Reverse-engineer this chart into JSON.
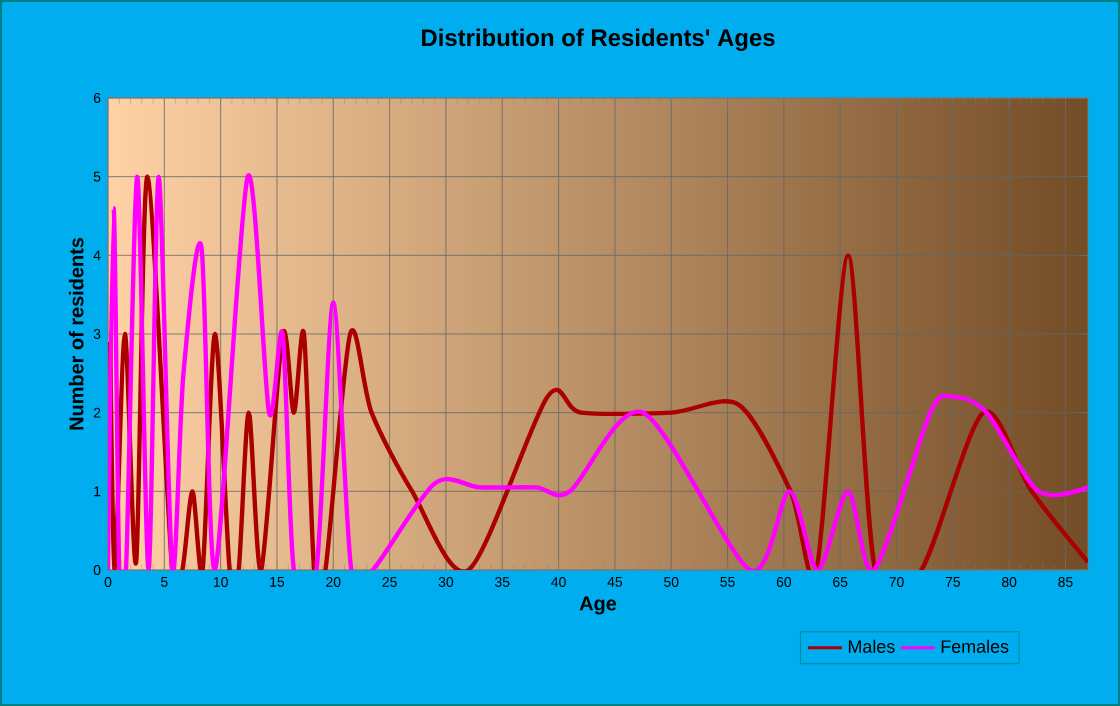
{
  "chart_data": {
    "type": "line",
    "title": "Distribution of Residents' Ages",
    "xlabel": "Age",
    "ylabel": "Number of residents",
    "xlim": [
      0,
      87
    ],
    "xticks": [
      0,
      5,
      10,
      15,
      20,
      25,
      30,
      35,
      40,
      45,
      50,
      55,
      60,
      65,
      70,
      75,
      80,
      85
    ],
    "ylim": [
      0,
      6
    ],
    "yticks": [
      0,
      1,
      2,
      3,
      4,
      5,
      6
    ],
    "grid": true,
    "legend": "bottom right",
    "marker": "none",
    "line_style": "solid",
    "series": [
      {
        "name": "Males",
        "color": "#aa0000",
        "x": [
          0.2,
          0.6,
          1.5,
          2.5,
          3.5,
          5.7,
          6.6,
          7.5,
          8.4,
          9.5,
          10.8,
          11.6,
          12.5,
          13.6,
          15.5,
          16.5,
          17.4,
          18.3,
          19.3,
          21.5,
          23.4,
          27,
          32,
          39,
          42,
          50,
          56,
          60.6,
          62.9,
          65.7,
          68.1,
          72.2,
          77.7,
          82,
          87
        ],
        "values": [
          2.9,
          0,
          3,
          0.1,
          5,
          0,
          0,
          1,
          0,
          3,
          0,
          0,
          2,
          0,
          3,
          2,
          3,
          0,
          0,
          3,
          2,
          1,
          0,
          2.2,
          2,
          2,
          2.1,
          1,
          0,
          4,
          0,
          0,
          2,
          1,
          0.1
        ]
      },
      {
        "name": "Females",
        "color": "#ff00ff",
        "x": [
          0,
          0.5,
          1,
          1.6,
          2.6,
          3.6,
          4.5,
          5.7,
          6.7,
          8.3,
          9.5,
          12.4,
          14.3,
          15.5,
          16.5,
          18.5,
          20,
          21.6,
          23.5,
          29,
          33,
          38,
          41,
          47.5,
          57,
          60.5,
          63,
          65.7,
          68,
          73,
          75,
          78,
          82.6,
          87
        ],
        "values": [
          0,
          4.6,
          0,
          0,
          5,
          0,
          5,
          0,
          2.5,
          4.1,
          0,
          5,
          2,
          3,
          0,
          0,
          3.4,
          0,
          0,
          1.1,
          1.05,
          1.05,
          1,
          2,
          0,
          1,
          0,
          1,
          0,
          2,
          2.2,
          2,
          1,
          1.05
        ]
      }
    ]
  }
}
